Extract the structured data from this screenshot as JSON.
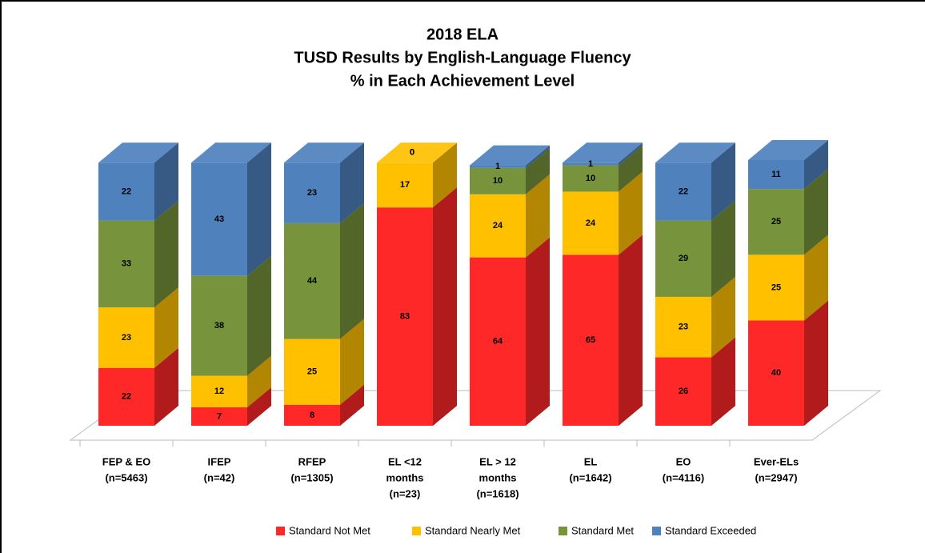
{
  "chart_data": {
    "type": "bar",
    "stacked": true,
    "three_d": true,
    "title": [
      "2018 ELA",
      "TUSD Results by English-Language Fluency",
      "% in Each Achievement Level"
    ],
    "categories": [
      [
        "FEP & EO",
        "(n=5463)"
      ],
      [
        "IFEP",
        "(n=42)"
      ],
      [
        "RFEP",
        "(n=1305)"
      ],
      [
        "EL <12",
        "months",
        "(n=23)"
      ],
      [
        "EL > 12",
        "months",
        "(n=1618)"
      ],
      [
        "EL",
        "(n=1642)"
      ],
      [
        "EO",
        "(n=4116)"
      ],
      [
        "Ever-ELs",
        "(n=2947)"
      ]
    ],
    "series": [
      {
        "name": "Standard Not Met",
        "color": "#ff2828",
        "values": [
          22,
          7,
          8,
          83,
          64,
          65,
          26,
          40
        ]
      },
      {
        "name": "Standard Nearly Met",
        "color": "#ffc000",
        "values": [
          23,
          12,
          25,
          17,
          24,
          24,
          23,
          25
        ]
      },
      {
        "name": "Standard Met",
        "color": "#77933c",
        "values": [
          33,
          38,
          44,
          0,
          10,
          10,
          29,
          25
        ]
      },
      {
        "name": "Standard Exceeded",
        "color": "#4f81bd",
        "values": [
          22,
          43,
          23,
          0,
          1,
          1,
          22,
          11
        ]
      }
    ],
    "legend": "bottom"
  }
}
